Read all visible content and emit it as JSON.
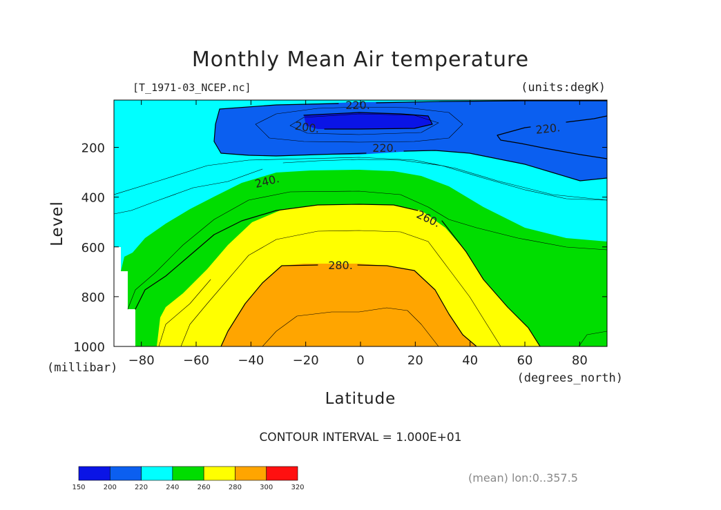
{
  "chart_data": {
    "type": "contour",
    "title": "Monthly Mean Air temperature",
    "file_label": "[T_1971-03_NCEP.nc]",
    "units_label": "(units:degK)",
    "xlabel": "Latitude",
    "ylabel": "Level",
    "x_units": "(degrees_north)",
    "y_units": "(millibar)",
    "xlim": [
      -90,
      90
    ],
    "ylim": [
      1000,
      10
    ],
    "x_ticks": [
      -80,
      -60,
      -40,
      -20,
      0,
      20,
      40,
      60,
      80
    ],
    "y_ticks": [
      200,
      400,
      600,
      800,
      1000
    ],
    "contour_interval_text": "CONTOUR INTERVAL = 1.000E+01",
    "averaging_note": "(mean) lon:0..357.5",
    "contour_labels": [
      "200.",
      "220.",
      "220.",
      "220.",
      "240.",
      "260.",
      "280."
    ],
    "colorbar": {
      "levels": [
        150,
        200,
        220,
        240,
        260,
        280,
        300,
        320
      ],
      "colors": [
        "#0a14e6",
        "#0b5ff0",
        "#00ffff",
        "#00dd00",
        "#ffff00",
        "#ffa500",
        "#ff1010"
      ]
    }
  }
}
